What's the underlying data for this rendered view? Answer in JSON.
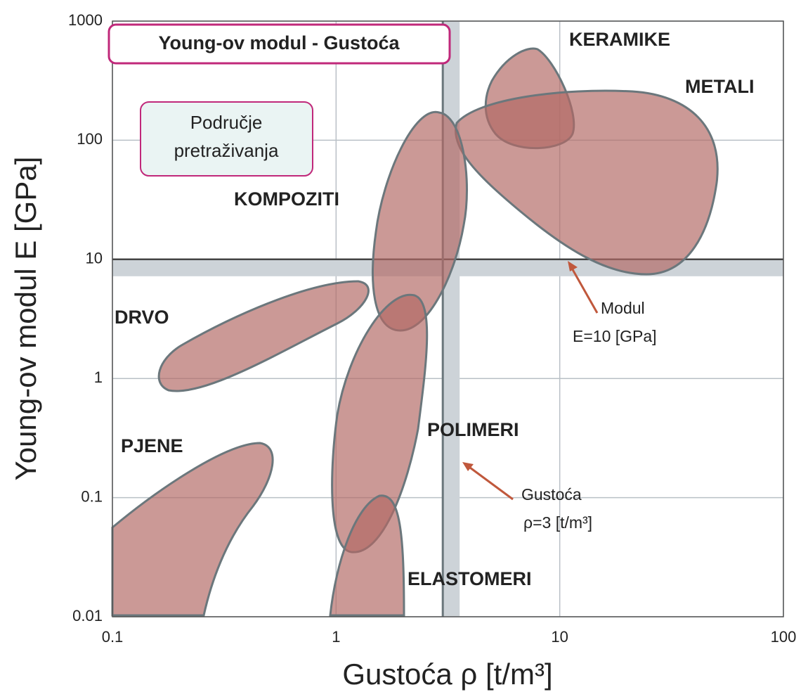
{
  "chart_data": {
    "type": "ashby",
    "title": "Young-ov modul - Gustoća",
    "search_area": [
      "Područje",
      "pretraživanja"
    ],
    "xlabel": "Gustoća ρ [t/m³]",
    "ylabel": "Young-ov modul  E [GPa]",
    "xscale": "log",
    "yscale": "log",
    "xlim": [
      0.1,
      100
    ],
    "xticks": [
      0.1,
      1,
      10,
      100
    ],
    "ylim": [
      0.01,
      1000
    ],
    "yticks": [
      0.01,
      0.1,
      1,
      10,
      100,
      1000
    ],
    "grid": true,
    "hline": 10,
    "vline": 3,
    "regions": [
      "KERAMIKE",
      "METALI",
      "KOMPOZITI",
      "DRVO",
      "PJENE",
      "POLIMERI",
      "ELASTOMERI"
    ],
    "hline_note": [
      "Modul",
      "E=10 [GPa]"
    ],
    "vline_note": [
      "Gustoća",
      "ρ=3 [t/m³]"
    ],
    "region_color": "#b26864"
  }
}
